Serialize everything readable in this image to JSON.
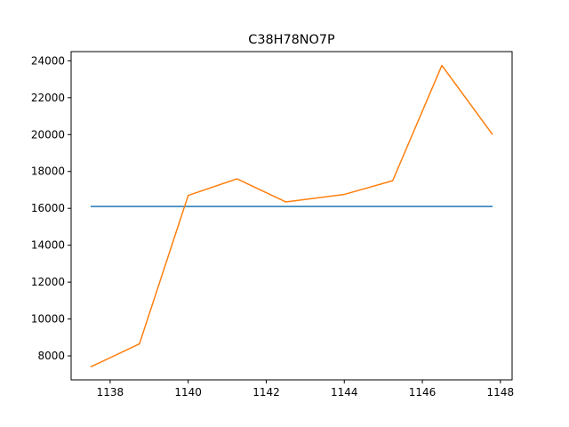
{
  "chart_data": {
    "type": "line",
    "title": "C38H78NO7P",
    "xlabel": "",
    "ylabel": "",
    "xlim": [
      1137.0,
      1148.3
    ],
    "ylim": [
      6700,
      24500
    ],
    "xticks": [
      1138,
      1140,
      1142,
      1144,
      1146,
      1148
    ],
    "yticks": [
      8000,
      10000,
      12000,
      14000,
      16000,
      18000,
      20000,
      22000,
      24000
    ],
    "grid": false,
    "legend": "none",
    "series": [
      {
        "color": "#1f77b4",
        "x": [
          1137.5,
          1147.8
        ],
        "y": [
          16100,
          16100
        ]
      },
      {
        "color": "#ff7f0e",
        "x": [
          1137.5,
          1138.75,
          1140.0,
          1141.25,
          1142.5,
          1143.99,
          1145.24,
          1146.5,
          1147.8
        ],
        "y": [
          7400,
          8650,
          16700,
          17600,
          16350,
          16750,
          17500,
          23750,
          20000
        ]
      }
    ]
  }
}
